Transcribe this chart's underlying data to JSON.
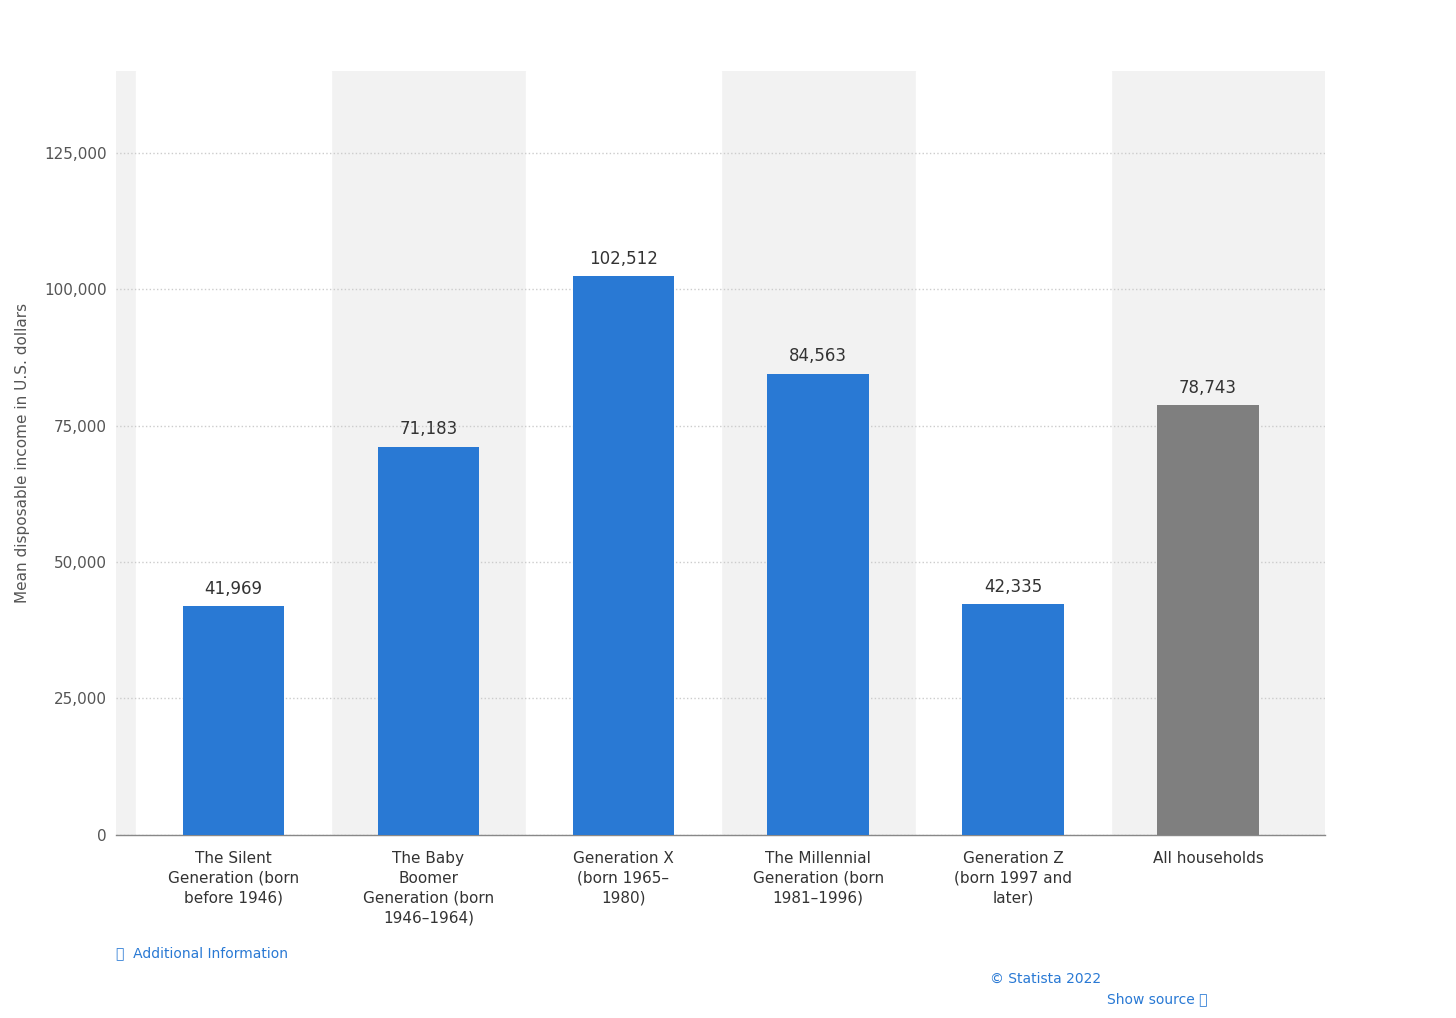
{
  "categories": [
    "The Silent\nGeneration (born\nbefore 1946)",
    "The Baby\nBoomer\nGeneration (born\n1946–1964)",
    "Generation X\n(born 1965–\n1980)",
    "The Millennial\nGeneration (born\n1981–1996)",
    "Generation Z\n(born 1997 and\nlater)",
    "All households"
  ],
  "values": [
    41969,
    71183,
    102512,
    84563,
    42335,
    78743
  ],
  "bar_colors": [
    "#2979d4",
    "#2979d4",
    "#2979d4",
    "#2979d4",
    "#2979d4",
    "#7f7f7f"
  ],
  "value_labels": [
    "41,969",
    "71,183",
    "102,512",
    "84,563",
    "42,335",
    "78,743"
  ],
  "ylabel": "Mean disposable income in U.S. dollars",
  "ylim": [
    0,
    140000
  ],
  "yticks": [
    0,
    25000,
    50000,
    75000,
    100000,
    125000
  ],
  "ytick_labels": [
    "0",
    "25,000",
    "50,000",
    "75,000",
    "100,000",
    "125,000"
  ],
  "background_color": "#ffffff",
  "plot_bg_color": "#f2f2f2",
  "stripe_color": "#ffffff",
  "grid_color": "#cccccc",
  "bar_width": 0.52,
  "label_fontsize": 12,
  "tick_fontsize": 11,
  "ylabel_fontsize": 11,
  "annotation_color": "#333333",
  "footer_statista": "© Statista 2022",
  "additional_info": "ⓘ  Additional Information",
  "show_source": "Show source ⓘ"
}
